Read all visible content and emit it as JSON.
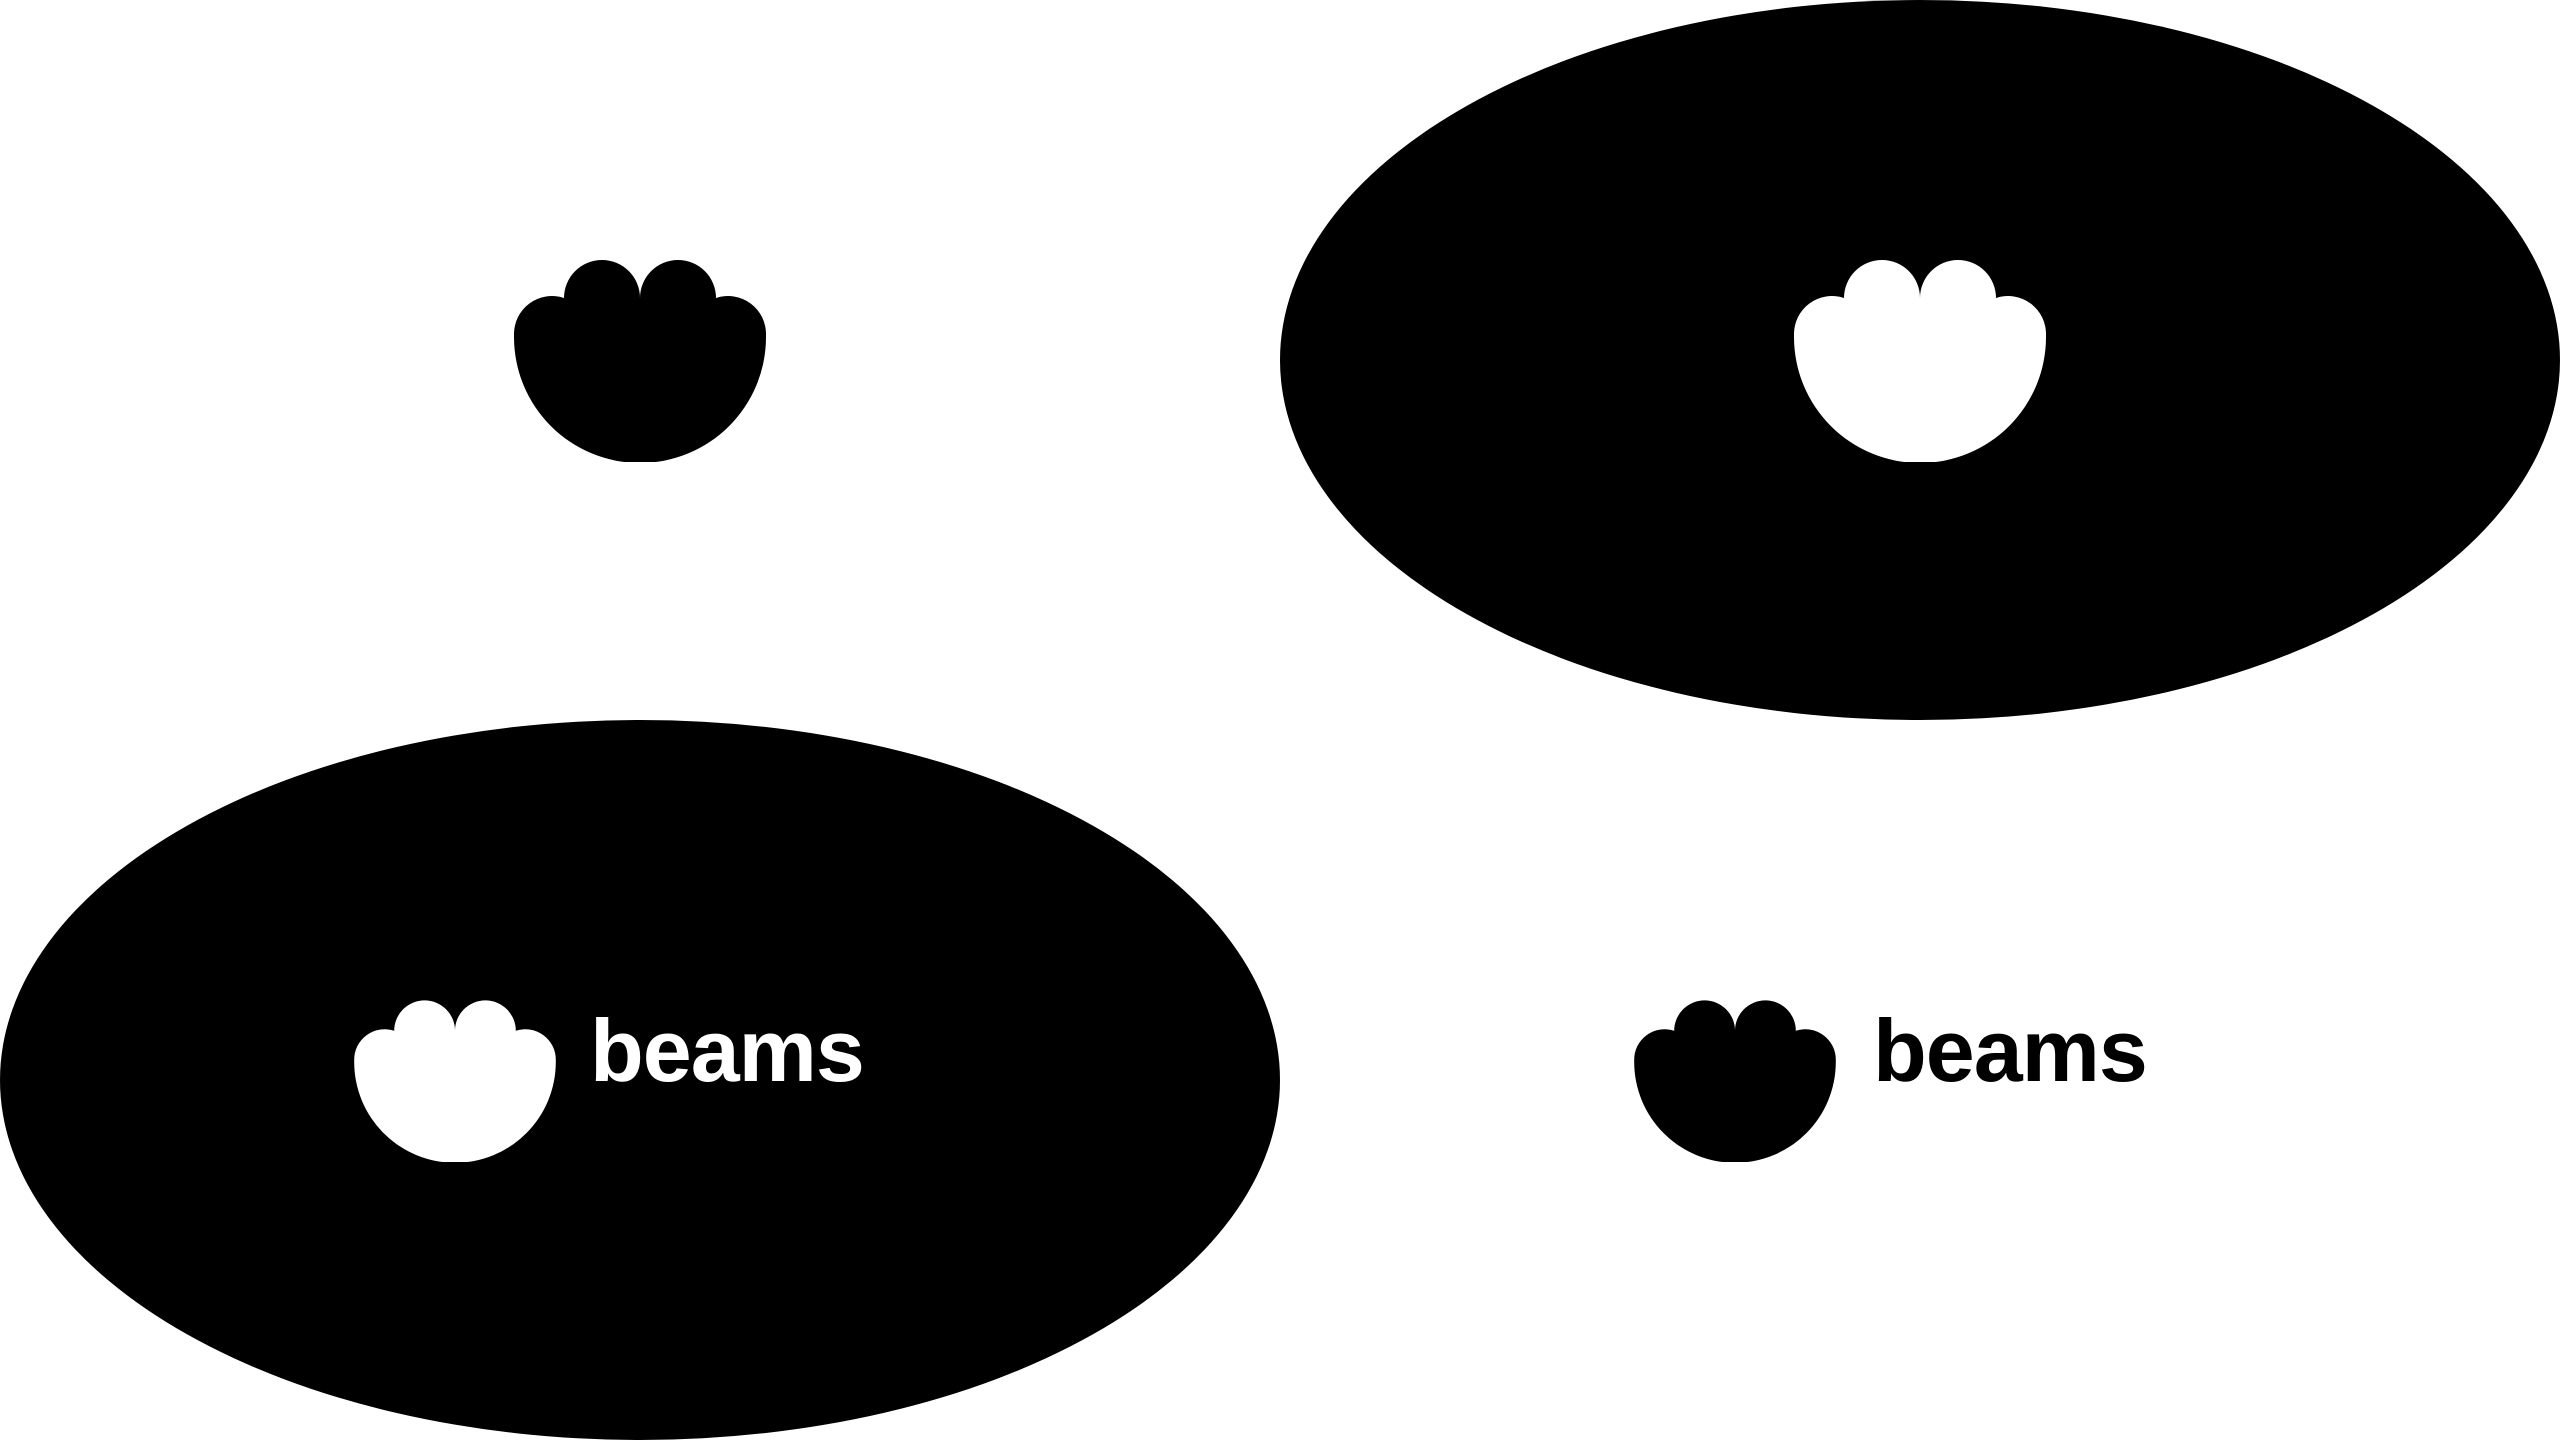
{
  "brand": {
    "name": "beams",
    "logo_icon": "paw-bowl-icon"
  },
  "colors": {
    "black": "#000000",
    "white": "#ffffff"
  },
  "variants": [
    {
      "label": "symbol-black-on-white"
    },
    {
      "label": "symbol-white-on-black"
    },
    {
      "label": "lockup-white-on-black"
    },
    {
      "label": "lockup-black-on-white"
    }
  ]
}
